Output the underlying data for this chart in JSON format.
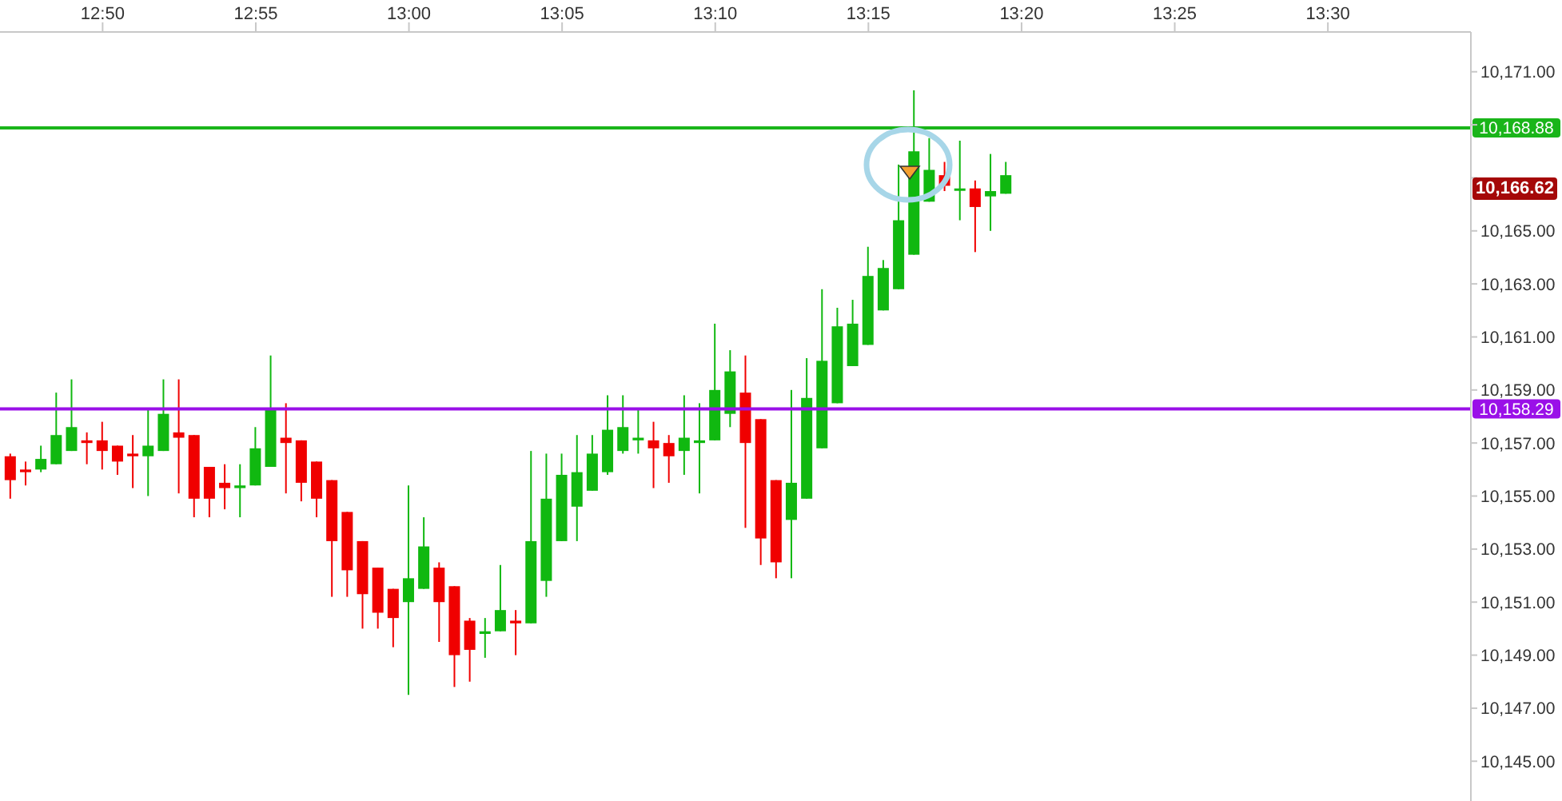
{
  "chart_data": {
    "type": "candlestick",
    "x": [
      12.78333,
      12.79167,
      12.8,
      12.80833,
      12.81667,
      12.825,
      12.83333,
      12.84167,
      12.85,
      12.85833,
      12.86667,
      12.875,
      12.88333,
      12.89167,
      12.9,
      12.90833,
      12.91667,
      12.925,
      12.93333,
      12.94167,
      12.95,
      12.95833,
      12.96667,
      12.975,
      12.98333,
      12.99167,
      13,
      13.00833,
      13.01667,
      13.025,
      13.03333,
      13.04167,
      13.05,
      13.05833,
      13.06667,
      13.075,
      13.08333,
      13.09167,
      13.1,
      13.10833,
      13.11667,
      13.125,
      13.13333,
      13.14167,
      13.15,
      13.15833,
      13.16667,
      13.175,
      13.18333,
      13.19167,
      13.2,
      13.20833,
      13.21667,
      13.225,
      13.23333,
      13.24167,
      13.25,
      13.25833,
      13.26667,
      13.275,
      13.28333,
      13.29167,
      13.3,
      13.30833,
      13.31667,
      13.325
    ],
    "ohlc": [
      [
        10156.5,
        10156.6,
        10154.9,
        10155.6
      ],
      [
        10156.0,
        10156.3,
        10155.4,
        10155.9
      ],
      [
        10156.0,
        10156.9,
        10155.9,
        10156.4
      ],
      [
        10156.2,
        10158.9,
        10156.2,
        10157.3
      ],
      [
        10156.7,
        10159.4,
        10156.7,
        10157.6
      ],
      [
        10157.1,
        10157.4,
        10156.2,
        10157.0
      ],
      [
        10157.1,
        10157.8,
        10156.0,
        10156.7
      ],
      [
        10156.9,
        10156.9,
        10155.8,
        10156.3
      ],
      [
        10156.6,
        10157.3,
        10155.3,
        10156.5
      ],
      [
        10156.5,
        10158.3,
        10155.0,
        10156.9
      ],
      [
        10156.7,
        10159.4,
        10156.7,
        10158.1
      ],
      [
        10157.4,
        10159.4,
        10155.1,
        10157.2
      ],
      [
        10157.3,
        10157.3,
        10154.2,
        10154.9
      ],
      [
        10156.1,
        10156.1,
        10154.2,
        10154.9
      ],
      [
        10155.5,
        10156.2,
        10154.5,
        10155.3
      ],
      [
        10155.3,
        10156.2,
        10154.2,
        10155.4
      ],
      [
        10155.4,
        10157.6,
        10155.4,
        10156.8
      ],
      [
        10156.1,
        10160.3,
        10156.1,
        10158.3
      ],
      [
        10157.2,
        10158.5,
        10155.1,
        10157.0
      ],
      [
        10157.1,
        10157.1,
        10154.8,
        10155.5
      ],
      [
        10156.3,
        10156.3,
        10154.2,
        10154.9
      ],
      [
        10155.6,
        10155.6,
        10151.2,
        10153.3
      ],
      [
        10154.4,
        10154.4,
        10151.2,
        10152.2
      ],
      [
        10153.3,
        10153.3,
        10150.0,
        10151.3
      ],
      [
        10152.3,
        10152.3,
        10150.0,
        10150.6
      ],
      [
        10151.5,
        10151.5,
        10149.3,
        10150.4
      ],
      [
        10151.0,
        10155.4,
        10147.5,
        10151.9
      ],
      [
        10151.5,
        10154.2,
        10151.5,
        10153.1
      ],
      [
        10152.3,
        10152.5,
        10149.5,
        10151.0
      ],
      [
        10151.6,
        10151.6,
        10147.8,
        10149.0
      ],
      [
        10150.3,
        10150.4,
        10148.0,
        10149.2
      ],
      [
        10149.8,
        10150.4,
        10148.9,
        10149.9
      ],
      [
        10149.9,
        10152.4,
        10149.9,
        10150.7
      ],
      [
        10150.3,
        10150.7,
        10149.0,
        10150.2
      ],
      [
        10150.2,
        10156.7,
        10150.2,
        10153.3
      ],
      [
        10151.8,
        10156.6,
        10151.2,
        10154.9
      ],
      [
        10153.3,
        10156.6,
        10153.3,
        10155.8
      ],
      [
        10154.6,
        10157.3,
        10153.3,
        10155.9
      ],
      [
        10155.2,
        10157.3,
        10155.2,
        10156.6
      ],
      [
        10155.9,
        10158.8,
        10155.8,
        10157.5
      ],
      [
        10156.7,
        10158.8,
        10156.6,
        10157.6
      ],
      [
        10157.1,
        10158.3,
        10156.6,
        10157.2
      ],
      [
        10157.1,
        10157.8,
        10155.3,
        10156.8
      ],
      [
        10157.0,
        10157.3,
        10155.5,
        10156.5
      ],
      [
        10156.7,
        10158.8,
        10155.8,
        10157.2
      ],
      [
        10157.0,
        10158.5,
        10155.1,
        10157.1
      ],
      [
        10157.1,
        10161.5,
        10157.1,
        10159.0
      ],
      [
        10158.1,
        10160.5,
        10157.6,
        10159.7
      ],
      [
        10158.9,
        10160.3,
        10153.8,
        10157.0
      ],
      [
        10157.9,
        10157.9,
        10152.4,
        10153.4
      ],
      [
        10155.6,
        10155.6,
        10151.9,
        10152.5
      ],
      [
        10154.1,
        10159.0,
        10151.9,
        10155.5
      ],
      [
        10154.9,
        10160.2,
        10154.9,
        10158.7
      ],
      [
        10156.8,
        10162.8,
        10156.8,
        10160.1
      ],
      [
        10158.5,
        10162.1,
        10158.5,
        10161.4
      ],
      [
        10159.9,
        10162.4,
        10159.9,
        10161.5
      ],
      [
        10160.7,
        10164.4,
        10160.7,
        10163.3
      ],
      [
        10162.0,
        10163.9,
        10162.0,
        10163.6
      ],
      [
        10162.8,
        10167.5,
        10162.8,
        10165.4
      ],
      [
        10164.1,
        10170.3,
        10164.1,
        10168.0
      ],
      [
        10166.1,
        10168.5,
        10166.1,
        10167.3
      ],
      [
        10167.1,
        10167.6,
        10166.5,
        10166.7
      ],
      [
        10166.6,
        10168.4,
        10165.4,
        10166.6
      ],
      [
        10166.6,
        10166.9,
        10164.2,
        10165.9
      ],
      [
        10166.3,
        10167.9,
        10165.0,
        10166.5
      ],
      [
        10166.4,
        10167.6,
        10166.4,
        10167.1
      ]
    ],
    "colors": [
      "#f00000",
      "#f00000",
      "#10b810",
      "#10b810",
      "#10b810",
      "#f00000",
      "#f00000",
      "#f00000",
      "#f00000",
      "#10b810",
      "#10b810",
      "#f00000",
      "#f00000",
      "#f00000",
      "#f00000",
      "#10b810",
      "#10b810",
      "#10b810",
      "#f00000",
      "#f00000",
      "#f00000",
      "#f00000",
      "#f00000",
      "#f00000",
      "#f00000",
      "#f00000",
      "#10b810",
      "#10b810",
      "#f00000",
      "#f00000",
      "#f00000",
      "#10b810",
      "#10b810",
      "#f00000",
      "#10b810",
      "#10b810",
      "#10b810",
      "#10b810",
      "#10b810",
      "#10b810",
      "#10b810",
      "#10b810",
      "#f00000",
      "#f00000",
      "#10b810",
      "#10b810",
      "#10b810",
      "#10b810",
      "#f00000",
      "#f00000",
      "#f00000",
      "#10b810",
      "#10b810",
      "#10b810",
      "#10b810",
      "#10b810",
      "#10b810",
      "#10b810",
      "#10b810",
      "#10b810",
      "#10b810",
      "#f00000",
      "#10b810",
      "#f00000",
      "#10b810",
      "#10b810"
    ],
    "xlim": [
      12.7775,
      13.5778
    ],
    "xticks": [
      {
        "value": 12.83333,
        "label": "12:50"
      },
      {
        "value": 12.91667,
        "label": "12:55"
      },
      {
        "value": 13,
        "label": "13:00"
      },
      {
        "value": 13.08333,
        "label": "13:05"
      },
      {
        "value": 13.16667,
        "label": "13:10"
      },
      {
        "value": 13.25,
        "label": "13:15"
      },
      {
        "value": 13.33333,
        "label": "13:20"
      },
      {
        "value": 13.41667,
        "label": "13:25"
      },
      {
        "value": 13.5,
        "label": "13:30"
      }
    ],
    "ylim": [
      10143.5,
      10172.5
    ],
    "yticks": [
      {
        "value": 10145,
        "label": "10,145.00"
      },
      {
        "value": 10147,
        "label": "10,147.00"
      },
      {
        "value": 10149,
        "label": "10,149.00"
      },
      {
        "value": 10151,
        "label": "10,151.00"
      },
      {
        "value": 10153,
        "label": "10,153.00"
      },
      {
        "value": 10155,
        "label": "10,155.00"
      },
      {
        "value": 10157,
        "label": "10,157.00"
      },
      {
        "value": 10159,
        "label": "10,159.00"
      },
      {
        "value": 10161,
        "label": "10,161.00"
      },
      {
        "value": 10163,
        "label": "10,163.00"
      },
      {
        "value": 10165,
        "label": "10,165.00"
      },
      {
        "value": 10167,
        "label": null
      },
      {
        "value": 10169,
        "label": null
      },
      {
        "value": 10171,
        "label": "10,171.00"
      }
    ],
    "ref_lines": [
      {
        "axis": "y",
        "value": 10168.88,
        "label": "10,168.88",
        "color": "#1ab51a"
      },
      {
        "axis": "y",
        "value": 10158.29,
        "label": "10,158.29",
        "color": "#9a10e8"
      }
    ],
    "annotations": [
      "10,166.62"
    ]
  }
}
